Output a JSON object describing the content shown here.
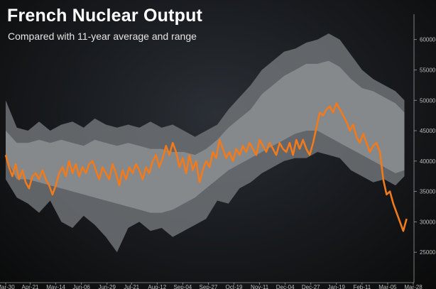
{
  "title": "French Nuclear Output",
  "subtitle": "Compared with 11-year average and range",
  "colors": {
    "series": "#f07a1c",
    "range_band": "#6f7275",
    "average_band": "#8a8d90",
    "axis": "#9a9a9a",
    "text": "#ffffff"
  },
  "chart_data": {
    "type": "line",
    "title": "French Nuclear Output",
    "subtitle": "Compared with 11-year average and range",
    "xlabel": "",
    "ylabel": "",
    "ylim": [
      20000,
      63000
    ],
    "y_ticks": [
      25000,
      30000,
      35000,
      40000,
      45000,
      50000,
      55000,
      60000
    ],
    "y_tick_labels": [
      "25000",
      "30000",
      "35000",
      "40000",
      "45000",
      "50000",
      "55000",
      "60000"
    ],
    "y_axis_side": "right",
    "x_ticks": [
      {
        "x": 0,
        "label": "Mar-30"
      },
      {
        "x": 22,
        "label": "Apr-21"
      },
      {
        "x": 45,
        "label": "May-14"
      },
      {
        "x": 68,
        "label": "Jun-06"
      },
      {
        "x": 91,
        "label": "Jun-29"
      },
      {
        "x": 113,
        "label": "Jul-21"
      },
      {
        "x": 136,
        "label": "Aug-12"
      },
      {
        "x": 159,
        "label": "Sep-04"
      },
      {
        "x": 182,
        "label": "Sep-27"
      },
      {
        "x": 205,
        "label": "Oct-19"
      },
      {
        "x": 228,
        "label": "Nov-11"
      },
      {
        "x": 251,
        "label": "Dec-04"
      },
      {
        "x": 274,
        "label": "Dec-27"
      },
      {
        "x": 297,
        "label": "Jan-19"
      },
      {
        "x": 320,
        "label": "Feb-11"
      },
      {
        "x": 343,
        "label": "Mar-05"
      },
      {
        "x": 366,
        "label": "Mar-28"
      }
    ],
    "xlim": [
      0,
      366
    ],
    "grid": false,
    "legend": "none",
    "range_upper": [
      [
        0,
        50000
      ],
      [
        10,
        45500
      ],
      [
        20,
        45000
      ],
      [
        30,
        46500
      ],
      [
        40,
        45000
      ],
      [
        50,
        46000
      ],
      [
        60,
        46500
      ],
      [
        70,
        45500
      ],
      [
        80,
        47000
      ],
      [
        90,
        46000
      ],
      [
        100,
        45500
      ],
      [
        110,
        46000
      ],
      [
        120,
        45500
      ],
      [
        130,
        46500
      ],
      [
        140,
        45500
      ],
      [
        150,
        46000
      ],
      [
        160,
        45000
      ],
      [
        170,
        44000
      ],
      [
        180,
        45000
      ],
      [
        190,
        46000
      ],
      [
        200,
        48500
      ],
      [
        210,
        50500
      ],
      [
        220,
        52500
      ],
      [
        230,
        55000
      ],
      [
        240,
        56500
      ],
      [
        250,
        58000
      ],
      [
        260,
        58500
      ],
      [
        270,
        59500
      ],
      [
        280,
        60000
      ],
      [
        290,
        61000
      ],
      [
        300,
        60000
      ],
      [
        310,
        57500
      ],
      [
        320,
        55000
      ],
      [
        330,
        53500
      ],
      [
        340,
        52500
      ],
      [
        350,
        51500
      ],
      [
        358,
        50000
      ]
    ],
    "average_upper": [
      [
        0,
        45000
      ],
      [
        10,
        43000
      ],
      [
        20,
        43000
      ],
      [
        30,
        43500
      ],
      [
        40,
        43000
      ],
      [
        50,
        43500
      ],
      [
        60,
        43000
      ],
      [
        70,
        42500
      ],
      [
        80,
        43500
      ],
      [
        90,
        43000
      ],
      [
        100,
        42500
      ],
      [
        110,
        43000
      ],
      [
        120,
        42500
      ],
      [
        130,
        42000
      ],
      [
        140,
        42000
      ],
      [
        150,
        41500
      ],
      [
        160,
        41500
      ],
      [
        170,
        41000
      ],
      [
        180,
        42000
      ],
      [
        190,
        43500
      ],
      [
        200,
        45500
      ],
      [
        210,
        47000
      ],
      [
        220,
        48500
      ],
      [
        230,
        51000
      ],
      [
        240,
        52500
      ],
      [
        250,
        54000
      ],
      [
        260,
        55000
      ],
      [
        270,
        56000
      ],
      [
        280,
        56000
      ],
      [
        290,
        56500
      ],
      [
        300,
        55500
      ],
      [
        310,
        53500
      ],
      [
        320,
        52000
      ],
      [
        330,
        51500
      ],
      [
        340,
        50500
      ],
      [
        350,
        49500
      ],
      [
        358,
        48000
      ]
    ],
    "average_lower": [
      [
        0,
        40500
      ],
      [
        10,
        37000
      ],
      [
        20,
        37000
      ],
      [
        30,
        36500
      ],
      [
        40,
        36000
      ],
      [
        50,
        35500
      ],
      [
        60,
        35000
      ],
      [
        70,
        34500
      ],
      [
        80,
        34000
      ],
      [
        90,
        33500
      ],
      [
        100,
        33000
      ],
      [
        110,
        32500
      ],
      [
        120,
        32000
      ],
      [
        130,
        31500
      ],
      [
        140,
        31500
      ],
      [
        150,
        32000
      ],
      [
        160,
        33000
      ],
      [
        170,
        34000
      ],
      [
        180,
        35500
      ],
      [
        190,
        37000
      ],
      [
        200,
        38500
      ],
      [
        210,
        39500
      ],
      [
        220,
        40500
      ],
      [
        230,
        41500
      ],
      [
        240,
        42500
      ],
      [
        250,
        43500
      ],
      [
        260,
        44500
      ],
      [
        270,
        45000
      ],
      [
        280,
        45000
      ],
      [
        290,
        44000
      ],
      [
        300,
        43000
      ],
      [
        310,
        42000
      ],
      [
        320,
        41000
      ],
      [
        330,
        40000
      ],
      [
        340,
        39000
      ],
      [
        350,
        38000
      ],
      [
        358,
        38500
      ]
    ],
    "range_lower": [
      [
        0,
        37000
      ],
      [
        10,
        34000
      ],
      [
        20,
        33000
      ],
      [
        30,
        31500
      ],
      [
        40,
        33500
      ],
      [
        50,
        30000
      ],
      [
        60,
        29000
      ],
      [
        70,
        31000
      ],
      [
        80,
        29500
      ],
      [
        90,
        27500
      ],
      [
        100,
        25000
      ],
      [
        110,
        29000
      ],
      [
        120,
        30000
      ],
      [
        130,
        28500
      ],
      [
        140,
        29000
      ],
      [
        150,
        27500
      ],
      [
        160,
        28500
      ],
      [
        170,
        29500
      ],
      [
        180,
        30500
      ],
      [
        190,
        33500
      ],
      [
        200,
        33000
      ],
      [
        210,
        35500
      ],
      [
        220,
        36500
      ],
      [
        230,
        38000
      ],
      [
        240,
        39000
      ],
      [
        250,
        40000
      ],
      [
        260,
        40500
      ],
      [
        270,
        40500
      ],
      [
        280,
        41500
      ],
      [
        290,
        41000
      ],
      [
        300,
        40500
      ],
      [
        310,
        38500
      ],
      [
        320,
        37500
      ],
      [
        330,
        36500
      ],
      [
        340,
        37000
      ],
      [
        350,
        36000
      ],
      [
        358,
        37500
      ]
    ],
    "series": [
      {
        "values": [
          [
            0,
            41000
          ],
          [
            3,
            39000
          ],
          [
            6,
            37500
          ],
          [
            9,
            39500
          ],
          [
            12,
            37000
          ],
          [
            15,
            38500
          ],
          [
            18,
            36500
          ],
          [
            21,
            35500
          ],
          [
            24,
            37500
          ],
          [
            27,
            38000
          ],
          [
            30,
            37000
          ],
          [
            33,
            38500
          ],
          [
            36,
            37000
          ],
          [
            39,
            36000
          ],
          [
            42,
            34500
          ],
          [
            45,
            36000
          ],
          [
            48,
            38000
          ],
          [
            51,
            39000
          ],
          [
            54,
            37500
          ],
          [
            57,
            40000
          ],
          [
            60,
            38000
          ],
          [
            63,
            39500
          ],
          [
            66,
            37500
          ],
          [
            69,
            39000
          ],
          [
            72,
            38000
          ],
          [
            75,
            39500
          ],
          [
            78,
            40000
          ],
          [
            81,
            38500
          ],
          [
            84,
            37000
          ],
          [
            87,
            39000
          ],
          [
            90,
            38000
          ],
          [
            93,
            37000
          ],
          [
            96,
            39500
          ],
          [
            99,
            38000
          ],
          [
            102,
            36000
          ],
          [
            105,
            38500
          ],
          [
            108,
            37000
          ],
          [
            111,
            39000
          ],
          [
            114,
            38000
          ],
          [
            117,
            39500
          ],
          [
            120,
            38500
          ],
          [
            123,
            37000
          ],
          [
            126,
            39000
          ],
          [
            129,
            38000
          ],
          [
            132,
            40000
          ],
          [
            135,
            41000
          ],
          [
            138,
            39000
          ],
          [
            141,
            40500
          ],
          [
            144,
            42500
          ],
          [
            147,
            41000
          ],
          [
            150,
            43000
          ],
          [
            153,
            41500
          ],
          [
            156,
            39000
          ],
          [
            159,
            40500
          ],
          [
            162,
            38000
          ],
          [
            165,
            41000
          ],
          [
            168,
            38500
          ],
          [
            171,
            40000
          ],
          [
            174,
            36500
          ],
          [
            177,
            38500
          ],
          [
            180,
            40000
          ],
          [
            183,
            39000
          ],
          [
            186,
            41500
          ],
          [
            189,
            40500
          ],
          [
            192,
            43500
          ],
          [
            195,
            42000
          ],
          [
            198,
            40500
          ],
          [
            201,
            41500
          ],
          [
            204,
            40000
          ],
          [
            207,
            42000
          ],
          [
            210,
            41000
          ],
          [
            213,
            42500
          ],
          [
            216,
            41500
          ],
          [
            219,
            43000
          ],
          [
            222,
            42000
          ],
          [
            225,
            41000
          ],
          [
            228,
            43500
          ],
          [
            231,
            42500
          ],
          [
            234,
            41500
          ],
          [
            237,
            43000
          ],
          [
            240,
            42000
          ],
          [
            243,
            41000
          ],
          [
            246,
            43000
          ],
          [
            249,
            42000
          ],
          [
            252,
            41500
          ],
          [
            255,
            43000
          ],
          [
            258,
            41000
          ],
          [
            261,
            43500
          ],
          [
            264,
            42000
          ],
          [
            267,
            43500
          ],
          [
            270,
            42000
          ],
          [
            273,
            41000
          ],
          [
            276,
            43000
          ],
          [
            279,
            45500
          ],
          [
            282,
            48000
          ],
          [
            285,
            47500
          ],
          [
            288,
            48500
          ],
          [
            291,
            49000
          ],
          [
            294,
            48000
          ],
          [
            297,
            49500
          ],
          [
            300,
            48500
          ],
          [
            303,
            47500
          ],
          [
            306,
            46500
          ],
          [
            309,
            45000
          ],
          [
            312,
            46000
          ],
          [
            315,
            44000
          ],
          [
            318,
            43000
          ],
          [
            321,
            44500
          ],
          [
            324,
            43000
          ],
          [
            327,
            41500
          ],
          [
            330,
            42500
          ],
          [
            333,
            43000
          ],
          [
            336,
            41500
          ],
          [
            339,
            37000
          ],
          [
            342,
            34500
          ],
          [
            345,
            35000
          ],
          [
            348,
            33000
          ],
          [
            351,
            31500
          ],
          [
            354,
            30000
          ],
          [
            357,
            28500
          ],
          [
            360,
            30500
          ]
        ]
      }
    ]
  }
}
